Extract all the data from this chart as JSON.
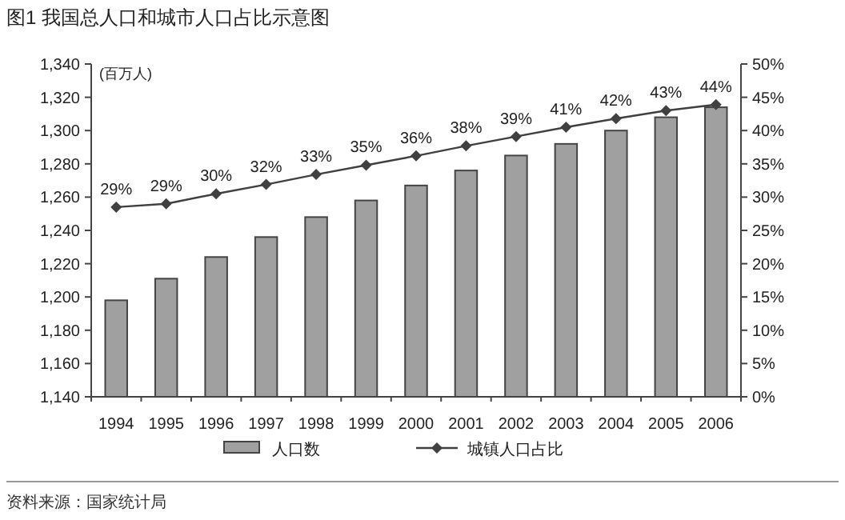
{
  "chart_data": {
    "type": "bar",
    "title": "图1  我国总人口和城市人口占比示意图",
    "ylabel": "(百万人)",
    "categories": [
      "1994",
      "1995",
      "1996",
      "1997",
      "1998",
      "1999",
      "2000",
      "2001",
      "2002",
      "2003",
      "2004",
      "2005",
      "2006"
    ],
    "series": [
      {
        "name": "人口数",
        "color": "#a0a0a0",
        "values": [
          1198,
          1211,
          1224,
          1236,
          1248,
          1258,
          1267,
          1276,
          1285,
          1292,
          1300,
          1308,
          1314
        ]
      },
      {
        "name": "城镇人口占比",
        "type": "line",
        "axis": "y2",
        "color": "#404040",
        "marker": "diamond",
        "values": [
          28.5,
          29.0,
          30.5,
          31.9,
          33.4,
          34.8,
          36.2,
          37.7,
          39.1,
          40.5,
          41.8,
          43.0,
          43.9
        ],
        "value_labels": [
          "29%",
          "29%",
          "30%",
          "32%",
          "33%",
          "35%",
          "36%",
          "38%",
          "39%",
          "41%",
          "42%",
          "43%",
          "44%"
        ]
      }
    ],
    "ylim": [
      1140,
      1340
    ],
    "yticks": [
      {
        "value": 1140,
        "label": "1,140"
      },
      {
        "value": 1160,
        "label": "1,160"
      },
      {
        "value": 1180,
        "label": "1,180"
      },
      {
        "value": 1200,
        "label": "1,200"
      },
      {
        "value": 1220,
        "label": "1,220"
      },
      {
        "value": 1240,
        "label": "1,240"
      },
      {
        "value": 1260,
        "label": "1,260"
      },
      {
        "value": 1280,
        "label": "1,280"
      },
      {
        "value": 1300,
        "label": "1,300"
      },
      {
        "value": 1320,
        "label": "1,320"
      },
      {
        "value": 1340,
        "label": "1,340"
      }
    ],
    "y2lim": [
      0,
      50
    ],
    "y2ticks": [
      {
        "value": 0,
        "label": "0%"
      },
      {
        "value": 5,
        "label": "5%"
      },
      {
        "value": 10,
        "label": "10%"
      },
      {
        "value": 15,
        "label": "15%"
      },
      {
        "value": 20,
        "label": "20%"
      },
      {
        "value": 25,
        "label": "25%"
      },
      {
        "value": 30,
        "label": "30%"
      },
      {
        "value": 35,
        "label": "35%"
      },
      {
        "value": 40,
        "label": "40%"
      },
      {
        "value": 45,
        "label": "45%"
      },
      {
        "value": 50,
        "label": "50%"
      }
    ],
    "grid": false,
    "legend": "bottom",
    "annotations": [
      "资料来源：国家统计局"
    ]
  }
}
